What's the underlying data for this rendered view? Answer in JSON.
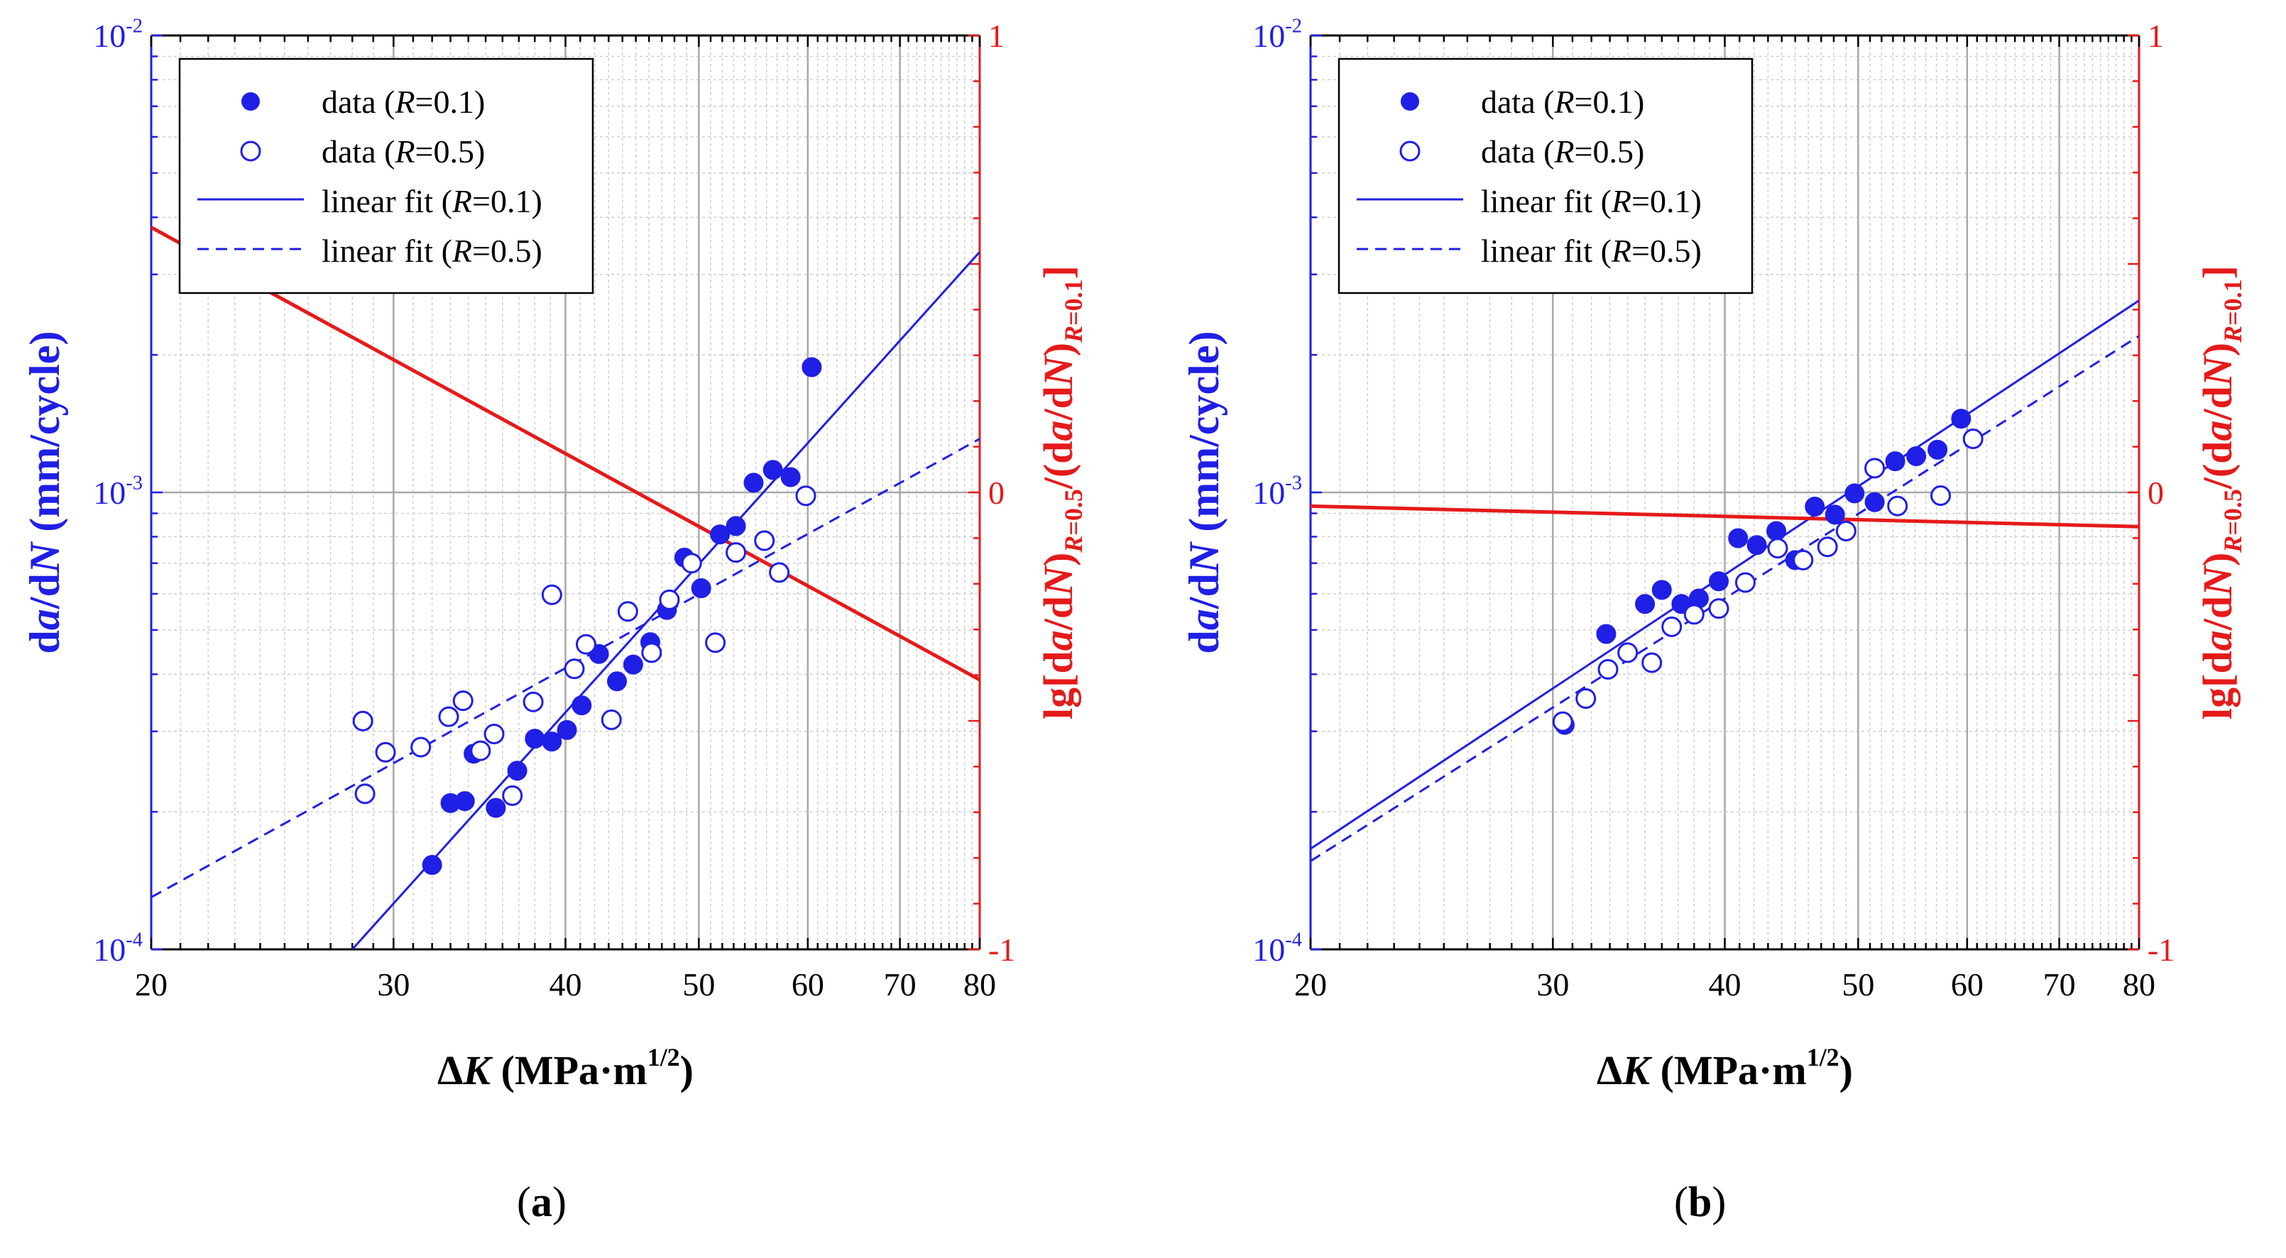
{
  "chart_data": [
    {
      "type": "scatter",
      "panel": "(a)",
      "panel_letter": "a",
      "xlabel_prefix": "ΔK (MPa·m",
      "xlabel_exp": "1/2",
      "xlabel_suffix": ")",
      "x_scale": "log",
      "xlim": [
        20,
        80
      ],
      "x_ticks": [
        20,
        30,
        40,
        50,
        60,
        70,
        80
      ],
      "y_scale": "log",
      "ylim": [
        0.0001,
        0.01
      ],
      "ylabel": "da/dN (mm/cycle)",
      "y_ticks": [
        {
          "base": "10",
          "exp": "-4"
        },
        {
          "base": "10",
          "exp": "-3"
        },
        {
          "base": "10",
          "exp": "-2"
        }
      ],
      "y2lim": [
        -1,
        1
      ],
      "y2_ticks": [
        "-1",
        "0",
        "1"
      ],
      "y2label": "lg[da/dN)R=0.5/(da/dN)R=0.1]",
      "grid": true,
      "legend_position": "top-left",
      "legend": [
        {
          "label": "data (R=0.1)",
          "marker": "filled-circle"
        },
        {
          "label": "data (R=0.5)",
          "marker": "open-circle"
        },
        {
          "label": "linear fit (R=0.1)",
          "line": "solid"
        },
        {
          "label": "linear fit (R=0.5)",
          "line": "dashed"
        }
      ],
      "series": [
        {
          "name": "data (R=0.1)",
          "style": "filled",
          "color": "#1f1fe6",
          "x": [
            32.0,
            33.0,
            33.8,
            34.3,
            35.6,
            36.9,
            38.0,
            39.1,
            40.1,
            41.1,
            42.3,
            43.6,
            44.8,
            46.1,
            47.4,
            48.8,
            50.2,
            51.8,
            53.2,
            54.8,
            56.6,
            58.3,
            60.4
          ],
          "y": [
            0.000153,
            0.000209,
            0.000211,
            0.000268,
            0.000204,
            0.000246,
            0.000289,
            0.000285,
            0.000302,
            0.000342,
            0.000443,
            0.000386,
            0.00042,
            0.00047,
            0.000553,
            0.00072,
            0.000617,
            0.000809,
            0.000844,
            0.00105,
            0.00112,
            0.00108,
            0.00188
          ]
        },
        {
          "name": "data (R=0.5)",
          "style": "open",
          "color": "#1f1fe6",
          "x": [
            28.5,
            28.6,
            29.6,
            31.4,
            32.9,
            33.7,
            34.7,
            35.5,
            36.6,
            37.9,
            39.1,
            40.6,
            41.4,
            43.2,
            44.4,
            46.2,
            47.6,
            49.4,
            51.4,
            53.2,
            55.8,
            57.2,
            59.8
          ],
          "y": [
            0.000316,
            0.000219,
            0.00027,
            0.000277,
            0.000323,
            0.00035,
            0.000272,
            0.000296,
            0.000217,
            0.000348,
            0.000597,
            0.000411,
            0.000465,
            0.000318,
            0.000549,
            0.000446,
            0.000582,
            0.0007,
            0.000469,
            0.000739,
            0.000784,
            0.000668,
            0.000983
          ]
        },
        {
          "name": "linear fit (R=0.1)",
          "style": "solid",
          "color": "#1f1fe6",
          "x": [
            28.0,
            80.0
          ],
          "y": [
            0.0001,
            0.00336
          ]
        },
        {
          "name": "linear fit (R=0.5)",
          "style": "dashed",
          "color": "#1f1fe6",
          "x": [
            20.0,
            80.0
          ],
          "y": [
            0.00013,
            0.00131
          ]
        },
        {
          "name": "lg ratio",
          "style": "solid",
          "color": "#e51a1a",
          "axis": "y2",
          "x": [
            20.0,
            80.0
          ],
          "y": [
            0.58,
            -0.41
          ]
        }
      ]
    },
    {
      "type": "scatter",
      "panel": "(b)",
      "panel_letter": "b",
      "xlabel_prefix": "ΔK (MPa·m",
      "xlabel_exp": "1/2",
      "xlabel_suffix": ")",
      "x_scale": "log",
      "xlim": [
        20,
        80
      ],
      "x_ticks": [
        20,
        30,
        40,
        50,
        60,
        70,
        80
      ],
      "y_scale": "log",
      "ylim": [
        0.0001,
        0.01
      ],
      "ylabel": "da/dN (mm/cycle)",
      "y_ticks": [
        {
          "base": "10",
          "exp": "-4"
        },
        {
          "base": "10",
          "exp": "-3"
        },
        {
          "base": "10",
          "exp": "-2"
        }
      ],
      "y2lim": [
        -1,
        1
      ],
      "y2_ticks": [
        "-1",
        "0",
        "1"
      ],
      "y2label": "lg[da/dN)R=0.5/(da/dN)R=0.1]",
      "grid": true,
      "legend_position": "top-left",
      "legend": [
        {
          "label": "data (R=0.1)",
          "marker": "filled-circle"
        },
        {
          "label": "data (R=0.5)",
          "marker": "open-circle"
        },
        {
          "label": "linear fit (R=0.1)",
          "line": "solid"
        },
        {
          "label": "linear fit (R=0.5)",
          "line": "dashed"
        }
      ],
      "series": [
        {
          "name": "data (R=0.1)",
          "style": "filled",
          "color": "#1f1fe6",
          "x": [
            30.6,
            32.8,
            35.0,
            36.0,
            37.2,
            38.3,
            39.6,
            40.9,
            42.2,
            43.6,
            45.0,
            46.5,
            48.1,
            49.7,
            51.4,
            53.2,
            55.1,
            57.1,
            59.4
          ],
          "y": [
            0.00031,
            0.00049,
            0.00057,
            0.000612,
            0.00057,
            0.000586,
            0.000639,
            0.000794,
            0.000767,
            0.000823,
            0.000711,
            0.000931,
            0.000894,
            0.000995,
            0.000952,
            0.00117,
            0.0012,
            0.00124,
            0.00145
          ]
        },
        {
          "name": "data (R=0.5)",
          "style": "open",
          "color": "#1f1fe6",
          "x": [
            30.5,
            31.7,
            32.9,
            34.0,
            35.4,
            36.6,
            38.0,
            39.6,
            41.4,
            43.7,
            45.6,
            47.5,
            49.0,
            51.4,
            53.4,
            57.4,
            60.6
          ],
          "y": [
            0.000315,
            0.000354,
            0.00041,
            0.000446,
            0.000424,
            0.000508,
            0.000541,
            0.000557,
            0.000635,
            0.000755,
            0.000711,
            0.00076,
            0.000823,
            0.00113,
            0.000934,
            0.000984,
            0.00131
          ]
        },
        {
          "name": "linear fit (R=0.1)",
          "style": "solid",
          "color": "#1f1fe6",
          "x": [
            20.0,
            80.0
          ],
          "y": [
            0.000166,
            0.00263
          ]
        },
        {
          "name": "linear fit (R=0.5)",
          "style": "dashed",
          "color": "#1f1fe6",
          "x": [
            20.0,
            80.0
          ],
          "y": [
            0.000156,
            0.0022
          ]
        },
        {
          "name": "lg ratio",
          "style": "solid",
          "color": "#e51a1a",
          "axis": "y2",
          "x": [
            20.0,
            80.0
          ],
          "y": [
            -0.03,
            -0.075
          ]
        }
      ]
    }
  ]
}
